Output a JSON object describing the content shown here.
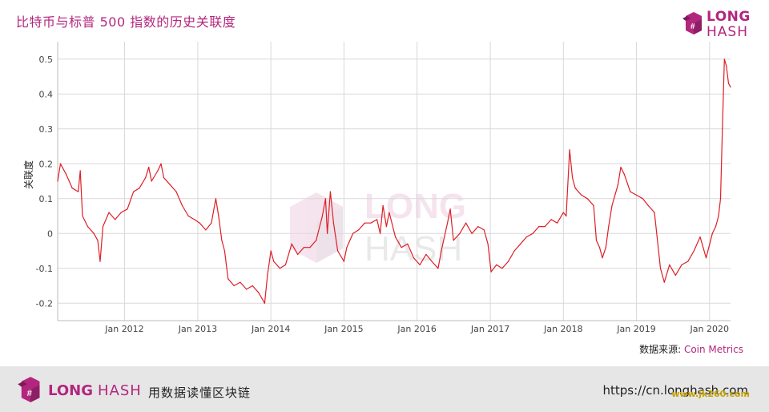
{
  "title": "比特币与标普 500 指数的历史关联度",
  "logo": {
    "line1": "LONG",
    "line2": "HASH"
  },
  "source": {
    "label": "数据来源:",
    "value": "Coin Metrics"
  },
  "footer": {
    "brand1": "LONG",
    "brand2": "HASH",
    "slogan": "用数据读懂区块链",
    "url": "https://cn.longhash.com"
  },
  "watermark": "www.jk260.com",
  "colors": {
    "accent": "#b3267e",
    "series": "#dd1f26",
    "grid": "#d9d9d9",
    "footer_bg": "#e6e6e6"
  },
  "chart_data": {
    "type": "line",
    "title": "比特币与标普 500 指数的历史关联度",
    "ylabel": "关联度",
    "xlabel": "",
    "ylim": [
      -0.25,
      0.55
    ],
    "xlim": [
      "2011-02-01",
      "2020-04-15"
    ],
    "yticks": [
      "0.5",
      "0.4",
      "0.3",
      "0.2",
      "0.1",
      "0",
      "-0.1",
      "-0.2"
    ],
    "yticks_values": [
      0.5,
      0.4,
      0.3,
      0.2,
      0.1,
      0,
      -0.1,
      -0.2
    ],
    "xticks": [
      "Jan 2012",
      "Jan 2013",
      "Jan 2014",
      "Jan 2015",
      "Jan 2016",
      "Jan 2017",
      "Jan 2018",
      "Jan 2019",
      "Jan 2020"
    ],
    "xticks_dates": [
      "2012-01-01",
      "2013-01-01",
      "2014-01-01",
      "2015-01-01",
      "2016-01-01",
      "2017-01-01",
      "2018-01-01",
      "2019-01-01",
      "2020-01-01"
    ],
    "grid": true,
    "legend": "none",
    "series": [
      {
        "points": [
          [
            "2011-02-01",
            0.15
          ],
          [
            "2011-02-15",
            0.2
          ],
          [
            "2011-03-15",
            0.17
          ],
          [
            "2011-04-15",
            0.13
          ],
          [
            "2011-05-15",
            0.12
          ],
          [
            "2011-05-25",
            0.18
          ],
          [
            "2011-06-05",
            0.05
          ],
          [
            "2011-07-01",
            0.02
          ],
          [
            "2011-08-01",
            0.0
          ],
          [
            "2011-08-20",
            -0.02
          ],
          [
            "2011-09-01",
            -0.08
          ],
          [
            "2011-09-15",
            0.02
          ],
          [
            "2011-10-15",
            0.06
          ],
          [
            "2011-11-15",
            0.04
          ],
          [
            "2011-12-15",
            0.06
          ],
          [
            "2012-01-15",
            0.07
          ],
          [
            "2012-02-15",
            0.12
          ],
          [
            "2012-03-15",
            0.13
          ],
          [
            "2012-04-15",
            0.16
          ],
          [
            "2012-05-01",
            0.19
          ],
          [
            "2012-05-15",
            0.15
          ],
          [
            "2012-06-15",
            0.18
          ],
          [
            "2012-07-01",
            0.2
          ],
          [
            "2012-07-15",
            0.16
          ],
          [
            "2012-08-15",
            0.14
          ],
          [
            "2012-09-15",
            0.12
          ],
          [
            "2012-10-15",
            0.08
          ],
          [
            "2012-11-15",
            0.05
          ],
          [
            "2012-12-15",
            0.04
          ],
          [
            "2013-01-10",
            0.03
          ],
          [
            "2013-02-10",
            0.01
          ],
          [
            "2013-03-10",
            0.03
          ],
          [
            "2013-04-01",
            0.1
          ],
          [
            "2013-04-15",
            0.05
          ],
          [
            "2013-05-01",
            -0.02
          ],
          [
            "2013-05-15",
            -0.05
          ],
          [
            "2013-06-01",
            -0.13
          ],
          [
            "2013-07-01",
            -0.15
          ],
          [
            "2013-08-01",
            -0.14
          ],
          [
            "2013-09-01",
            -0.16
          ],
          [
            "2013-10-01",
            -0.15
          ],
          [
            "2013-11-01",
            -0.17
          ],
          [
            "2013-12-01",
            -0.2
          ],
          [
            "2013-12-15",
            -0.12
          ],
          [
            "2014-01-01",
            -0.05
          ],
          [
            "2014-01-15",
            -0.08
          ],
          [
            "2014-02-15",
            -0.1
          ],
          [
            "2014-03-15",
            -0.09
          ],
          [
            "2014-04-15",
            -0.03
          ],
          [
            "2014-05-15",
            -0.06
          ],
          [
            "2014-06-15",
            -0.04
          ],
          [
            "2014-07-15",
            -0.04
          ],
          [
            "2014-08-15",
            -0.02
          ],
          [
            "2014-09-15",
            0.05
          ],
          [
            "2014-10-01",
            0.1
          ],
          [
            "2014-10-10",
            0.0
          ],
          [
            "2014-10-25",
            0.12
          ],
          [
            "2014-11-10",
            0.03
          ],
          [
            "2014-12-01",
            -0.05
          ],
          [
            "2015-01-01",
            -0.08
          ],
          [
            "2015-01-15",
            -0.04
          ],
          [
            "2015-02-15",
            0.0
          ],
          [
            "2015-03-15",
            0.01
          ],
          [
            "2015-04-15",
            0.03
          ],
          [
            "2015-05-15",
            0.03
          ],
          [
            "2015-06-15",
            0.04
          ],
          [
            "2015-07-01",
            0.0
          ],
          [
            "2015-07-15",
            0.08
          ],
          [
            "2015-08-01",
            0.02
          ],
          [
            "2015-08-15",
            0.06
          ],
          [
            "2015-09-15",
            -0.01
          ],
          [
            "2015-10-15",
            -0.04
          ],
          [
            "2015-11-15",
            -0.03
          ],
          [
            "2015-12-15",
            -0.07
          ],
          [
            "2016-01-15",
            -0.09
          ],
          [
            "2016-02-15",
            -0.06
          ],
          [
            "2016-03-15",
            -0.08
          ],
          [
            "2016-04-15",
            -0.1
          ],
          [
            "2016-05-01",
            -0.05
          ],
          [
            "2016-06-01",
            0.03
          ],
          [
            "2016-06-15",
            0.07
          ],
          [
            "2016-07-01",
            -0.02
          ],
          [
            "2016-08-01",
            0.0
          ],
          [
            "2016-09-01",
            0.03
          ],
          [
            "2016-10-01",
            0.0
          ],
          [
            "2016-11-01",
            0.02
          ],
          [
            "2016-12-01",
            0.01
          ],
          [
            "2016-12-20",
            -0.03
          ],
          [
            "2017-01-05",
            -0.11
          ],
          [
            "2017-02-01",
            -0.09
          ],
          [
            "2017-03-01",
            -0.1
          ],
          [
            "2017-04-01",
            -0.08
          ],
          [
            "2017-05-01",
            -0.05
          ],
          [
            "2017-06-01",
            -0.03
          ],
          [
            "2017-07-01",
            -0.01
          ],
          [
            "2017-08-01",
            0.0
          ],
          [
            "2017-09-01",
            0.02
          ],
          [
            "2017-10-01",
            0.02
          ],
          [
            "2017-11-01",
            0.04
          ],
          [
            "2017-12-01",
            0.03
          ],
          [
            "2018-01-01",
            0.06
          ],
          [
            "2018-01-15",
            0.05
          ],
          [
            "2018-02-01",
            0.24
          ],
          [
            "2018-02-15",
            0.16
          ],
          [
            "2018-03-01",
            0.13
          ],
          [
            "2018-04-01",
            0.11
          ],
          [
            "2018-05-01",
            0.1
          ],
          [
            "2018-06-01",
            0.08
          ],
          [
            "2018-06-15",
            -0.02
          ],
          [
            "2018-07-01",
            -0.04
          ],
          [
            "2018-07-15",
            -0.07
          ],
          [
            "2018-08-01",
            -0.04
          ],
          [
            "2018-08-15",
            0.02
          ],
          [
            "2018-09-01",
            0.08
          ],
          [
            "2018-10-01",
            0.14
          ],
          [
            "2018-10-15",
            0.19
          ],
          [
            "2018-11-01",
            0.17
          ],
          [
            "2018-12-01",
            0.12
          ],
          [
            "2019-01-01",
            0.11
          ],
          [
            "2019-02-01",
            0.1
          ],
          [
            "2019-03-01",
            0.08
          ],
          [
            "2019-04-01",
            0.06
          ],
          [
            "2019-05-01",
            -0.1
          ],
          [
            "2019-05-20",
            -0.14
          ],
          [
            "2019-06-15",
            -0.09
          ],
          [
            "2019-07-15",
            -0.12
          ],
          [
            "2019-08-15",
            -0.09
          ],
          [
            "2019-09-15",
            -0.08
          ],
          [
            "2019-10-15",
            -0.05
          ],
          [
            "2019-11-15",
            -0.01
          ],
          [
            "2019-12-15",
            -0.07
          ],
          [
            "2020-01-15",
            0.0
          ],
          [
            "2020-02-01",
            0.02
          ],
          [
            "2020-02-15",
            0.05
          ],
          [
            "2020-02-25",
            0.1
          ],
          [
            "2020-03-05",
            0.3
          ],
          [
            "2020-03-15",
            0.5
          ],
          [
            "2020-03-25",
            0.48
          ],
          [
            "2020-04-05",
            0.43
          ],
          [
            "2020-04-15",
            0.42
          ]
        ]
      }
    ]
  }
}
